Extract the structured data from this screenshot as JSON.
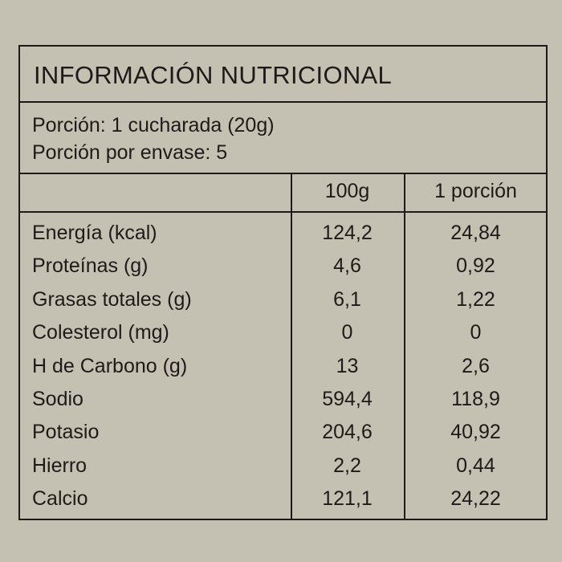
{
  "title": "INFORMACIÓN NUTRICIONAL",
  "portion": "Porción: 1 cucharada (20g)",
  "portions_per_package": "Porción por envase: 5",
  "columns": [
    "100g",
    "1 porción"
  ],
  "rows": [
    {
      "label": "Energía (kcal)",
      "per100": "124,2",
      "perPortion": "24,84"
    },
    {
      "label": "Proteínas (g)",
      "per100": "4,6",
      "perPortion": "0,92"
    },
    {
      "label": "Grasas totales (g)",
      "per100": "6,1",
      "perPortion": "1,22"
    },
    {
      "label": "Colesterol (mg)",
      "per100": "0",
      "perPortion": "0"
    },
    {
      "label": "H de Carbono (g)",
      "per100": "13",
      "perPortion": "2,6"
    },
    {
      "label": "Sodio",
      "per100": "594,4",
      "perPortion": "118,9"
    },
    {
      "label": "Potasio",
      "per100": "204,6",
      "perPortion": "40,92"
    },
    {
      "label": "Hierro",
      "per100": "2,2",
      "perPortion": "0,44"
    },
    {
      "label": "Calcio",
      "per100": "121,1",
      "perPortion": "24,22"
    }
  ]
}
